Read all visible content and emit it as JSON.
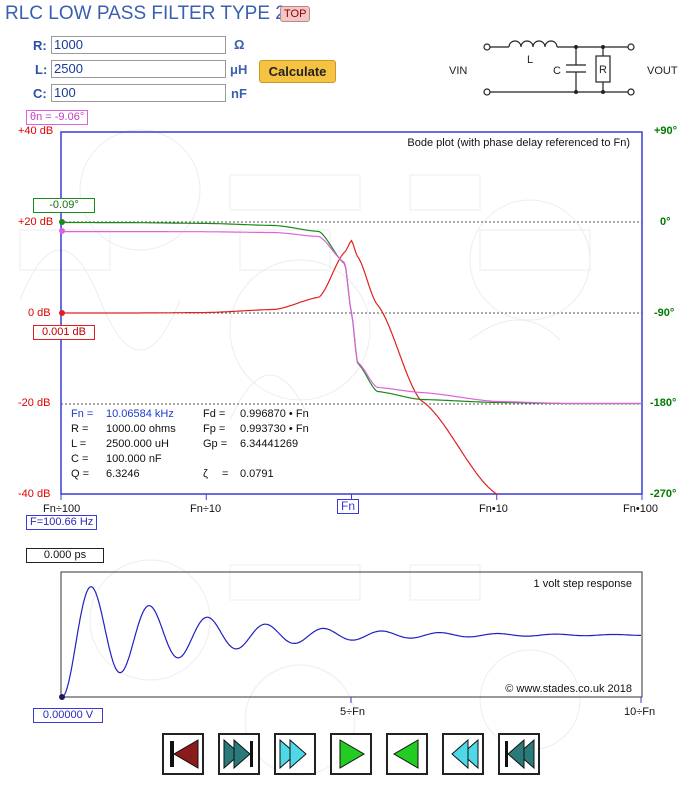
{
  "title": "RLC LOW PASS FILTER TYPE 2",
  "top_button": "TOP",
  "inputs": [
    {
      "label": "R:",
      "value": "1000",
      "unit": "Ω"
    },
    {
      "label": "L:",
      "value": "2500",
      "unit": "μH"
    },
    {
      "label": "C:",
      "value": "100",
      "unit": "nF"
    }
  ],
  "calculate_label": "Calculate",
  "circuit": {
    "l_label": "L",
    "c_label": "C",
    "r_label": "R",
    "vin": "VIN",
    "vout": "VOUT"
  },
  "bode": {
    "title": "Bode plot (with phase delay referenced to Fn)",
    "theta_readout": "θn = -9.06°",
    "phase_readout": "-0.09°",
    "db_readout": "0.001 dB",
    "freq_readout": "F=100.66 Hz",
    "fn_marker": "Fn",
    "y_left_ticks": [
      "+40 dB",
      "+20 dB",
      "0 dB",
      "-20 dB",
      "-40 dB"
    ],
    "y_right_ticks": [
      "+90°",
      "0°",
      "-90°",
      "-180°",
      "-270°"
    ],
    "x_ticks": [
      "Fn÷100",
      "Fn÷10",
      "Fn",
      "Fn•10",
      "Fn•100"
    ],
    "colors": {
      "gain": "#e02020",
      "phase": "#1a8a1a",
      "phase_delay": "#e060e0",
      "frame": "#3a3ad8"
    }
  },
  "params": {
    "fn_label": "Fn  =",
    "fn_value": "10.06584 kHz",
    "r_label": "R   =",
    "r_value": "1000.00 ohms",
    "l_label": "L   =",
    "l_value": "2500.000 uH",
    "c_label": "C   =",
    "c_value": "100.000 nF",
    "q_label": "Q   =",
    "q_value": "6.3246",
    "fd_label": "Fd   =",
    "fd_value": "0.996870 • Fn",
    "fp_label": "Fp   =",
    "fp_value": "0.993730 • Fn",
    "gp_label": "Gp  =",
    "gp_value": "6.34441269",
    "zeta_label": "ζ",
    "zeta_eq": "=",
    "zeta_value": "0.0791"
  },
  "step": {
    "title": "1 volt step response",
    "time_readout": "0.000 ps",
    "volt_readout": "0.00000 V",
    "copyright": "© www.stades.co.uk 2018",
    "x_ticks": [
      "5÷Fn",
      "10÷Fn"
    ],
    "color": "#2020c0"
  },
  "nav_buttons": [
    "rewind-to-start",
    "step-back-fast",
    "step-forward-fast",
    "play-forward",
    "play-backward",
    "fast-backward",
    "rewind-fast"
  ],
  "chart_data": [
    {
      "type": "line",
      "title": "Bode plot (with phase delay referenced to Fn)",
      "x_scale": "log",
      "x_ticks": [
        "Fn÷100",
        "Fn÷10",
        "Fn",
        "Fn•10",
        "Fn•100"
      ],
      "ylim_db": [
        -40,
        40
      ],
      "ylim_phase_deg": [
        -270,
        90
      ],
      "grid": "dotted at 20 dB, 0 dB, -20 dB",
      "x": [
        0.01,
        0.03,
        0.1,
        0.3,
        0.6,
        0.9,
        1,
        1.1,
        1.5,
        3,
        10,
        30,
        100
      ],
      "series": [
        {
          "values": [
            0,
            0,
            0.1,
            0.8,
            3.5,
            13.5,
            16,
            12.5,
            1.9,
            -19.3,
            -40,
            -59,
            -80
          ]
        },
        {
          "values": [
            0,
            -0.1,
            -0.9,
            -3,
            -9,
            -41,
            -90,
            -140,
            -168,
            -176,
            -179,
            -180,
            -180
          ]
        },
        {
          "values": [
            -9,
            -9,
            -9.2,
            -10,
            -14,
            -40,
            -90,
            -139,
            -164,
            -169,
            -178,
            -180,
            -180
          ]
        }
      ]
    },
    {
      "type": "line",
      "title": "1 volt step response",
      "x_ticks": [
        "5÷Fn",
        "10÷Fn"
      ],
      "x": [
        0,
        0.25,
        0.5,
        0.75,
        1,
        1.25,
        1.5,
        1.75,
        2,
        2.5,
        3,
        4,
        5,
        6,
        7,
        8,
        9,
        10
      ],
      "series": [
        {
          "values": [
            0,
            1.5,
            1.77,
            1.3,
            0.47,
            0.26,
            0.64,
            1.27,
            1.54,
            0.62,
            1.39,
            1.28,
            1.08,
            1.05,
            1.02,
            1.01,
            1.005,
            1.002
          ]
        }
      ]
    }
  ]
}
